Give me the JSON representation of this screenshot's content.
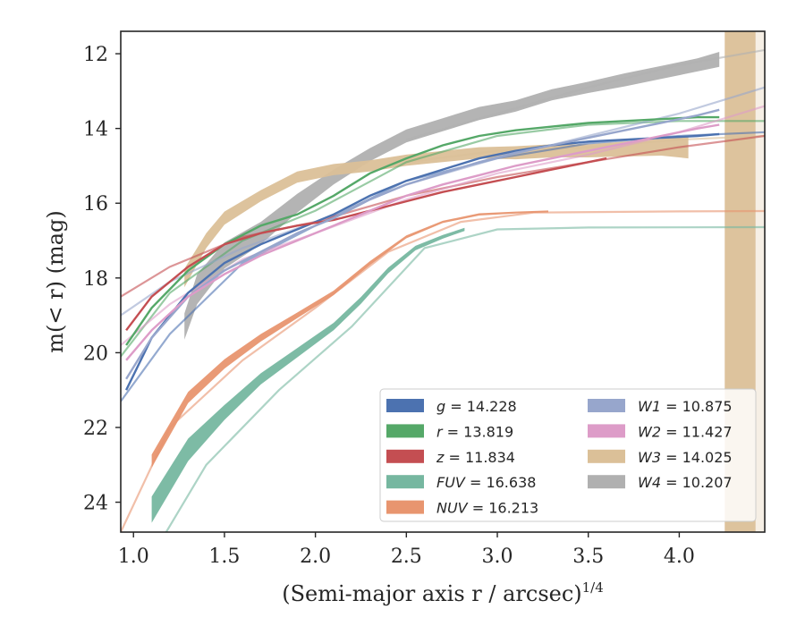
{
  "chart_data": {
    "type": "line",
    "xlabel": "(Semi-major axis r / arcsec)",
    "xlabel_italic": "r",
    "xlabel_exponent": "1/4",
    "ylabel": "m(< r) (mag)",
    "xlim": [
      0.93,
      4.47
    ],
    "ylim": [
      24.8,
      11.4
    ],
    "y_inverted": true,
    "xticks": [
      1.0,
      1.5,
      2.0,
      2.5,
      3.0,
      3.5,
      4.0
    ],
    "xtick_labels": [
      "1.0",
      "1.5",
      "2.0",
      "2.5",
      "3.0",
      "3.5",
      "4.0"
    ],
    "yticks": [
      12,
      14,
      16,
      18,
      20,
      22,
      24
    ],
    "ytick_labels": [
      "12",
      "14",
      "16",
      "18",
      "20",
      "22",
      "24"
    ],
    "grid": false,
    "legend": {
      "placement": "lower-right",
      "columns": 2,
      "entries": [
        {
          "band": "g",
          "value": "14.228",
          "color": "#4c72b0"
        },
        {
          "band": "r",
          "value": "13.819",
          "color": "#55a868"
        },
        {
          "band": "z",
          "value": "11.834",
          "color": "#c44e52"
        },
        {
          "band": "FUV",
          "value": "16.638",
          "color": "#76b7a0"
        },
        {
          "band": "NUV",
          "value": "16.213",
          "color": "#e8956f"
        },
        {
          "band": "W1",
          "value": "10.875",
          "color": "#97a6cc"
        },
        {
          "band": "W2",
          "value": "11.427",
          "color": "#dd9cc8"
        },
        {
          "band": "W3",
          "value": "14.025",
          "color": "#dbc098"
        },
        {
          "band": "W4",
          "value": "10.207",
          "color": "#b0b0b0"
        }
      ]
    },
    "series": [
      {
        "name": "W4",
        "color": "#b0b0b0",
        "data": [
          [
            1.28,
            19.3
          ],
          [
            1.35,
            18.3
          ],
          [
            1.5,
            17.4
          ],
          [
            1.7,
            16.8
          ],
          [
            1.9,
            16.0
          ],
          [
            2.1,
            15.3
          ],
          [
            2.3,
            14.7
          ],
          [
            2.5,
            14.2
          ],
          [
            2.7,
            13.9
          ],
          [
            2.9,
            13.6
          ],
          [
            3.1,
            13.4
          ],
          [
            3.3,
            13.1
          ],
          [
            3.5,
            12.9
          ],
          [
            3.7,
            12.7
          ],
          [
            3.9,
            12.5
          ],
          [
            4.1,
            12.3
          ],
          [
            4.22,
            12.15
          ]
        ],
        "band_width": [
          0.7,
          0.8,
          0.7,
          0.6,
          0.5,
          0.4,
          0.35,
          0.35,
          0.35,
          0.35,
          0.3,
          0.3,
          0.3,
          0.35,
          0.35,
          0.35,
          0.4
        ],
        "model": [
          [
            2.5,
            14.3
          ],
          [
            3.0,
            13.6
          ],
          [
            3.5,
            12.9
          ],
          [
            4.0,
            12.3
          ],
          [
            4.47,
            11.9
          ]
        ]
      },
      {
        "name": "W3",
        "color": "#dbc098",
        "data": [
          [
            1.28,
            18.0
          ],
          [
            1.4,
            17.0
          ],
          [
            1.5,
            16.4
          ],
          [
            1.7,
            15.8
          ],
          [
            1.9,
            15.3
          ],
          [
            2.1,
            15.1
          ],
          [
            2.3,
            15.0
          ],
          [
            2.5,
            14.85
          ],
          [
            2.7,
            14.75
          ],
          [
            2.9,
            14.65
          ],
          [
            3.1,
            14.65
          ],
          [
            3.3,
            14.6
          ],
          [
            3.5,
            14.6
          ],
          [
            3.7,
            14.55
          ],
          [
            3.9,
            14.5
          ],
          [
            4.05,
            14.5
          ]
        ],
        "band_width": [
          0.5,
          0.4,
          0.35,
          0.3,
          0.3,
          0.3,
          0.3,
          0.3,
          0.3,
          0.3,
          0.35,
          0.35,
          0.35,
          0.4,
          0.45,
          0.6
        ],
        "model": [
          [
            2.5,
            14.9
          ],
          [
            3.0,
            14.6
          ],
          [
            3.5,
            14.5
          ],
          [
            4.0,
            14.3
          ],
          [
            4.47,
            14.2
          ]
        ]
      },
      {
        "name": "g",
        "color": "#4c72b0",
        "data": [
          [
            0.96,
            21.0
          ],
          [
            1.1,
            19.6
          ],
          [
            1.3,
            18.4
          ],
          [
            1.5,
            17.6
          ],
          [
            1.7,
            17.1
          ],
          [
            1.9,
            16.7
          ],
          [
            2.1,
            16.3
          ],
          [
            2.3,
            15.8
          ],
          [
            2.5,
            15.4
          ],
          [
            2.7,
            15.1
          ],
          [
            2.9,
            14.8
          ],
          [
            3.1,
            14.6
          ],
          [
            3.3,
            14.45
          ],
          [
            3.5,
            14.35
          ],
          [
            3.7,
            14.3
          ],
          [
            3.9,
            14.25
          ],
          [
            4.1,
            14.2
          ],
          [
            4.22,
            14.15
          ]
        ],
        "model": [
          [
            0.93,
            21.3
          ],
          [
            1.2,
            19.5
          ],
          [
            1.6,
            17.6
          ],
          [
            2.0,
            16.6
          ],
          [
            2.5,
            15.4
          ],
          [
            3.0,
            14.8
          ],
          [
            3.5,
            14.4
          ],
          [
            4.0,
            14.2
          ],
          [
            4.47,
            14.1
          ]
        ]
      },
      {
        "name": "r",
        "color": "#55a868",
        "data": [
          [
            0.96,
            19.8
          ],
          [
            1.1,
            18.8
          ],
          [
            1.3,
            17.8
          ],
          [
            1.5,
            17.1
          ],
          [
            1.7,
            16.6
          ],
          [
            1.9,
            16.3
          ],
          [
            2.1,
            15.8
          ],
          [
            2.3,
            15.2
          ],
          [
            2.5,
            14.8
          ],
          [
            2.7,
            14.45
          ],
          [
            2.9,
            14.2
          ],
          [
            3.1,
            14.05
          ],
          [
            3.3,
            13.95
          ],
          [
            3.5,
            13.85
          ],
          [
            3.7,
            13.8
          ],
          [
            3.9,
            13.75
          ],
          [
            4.1,
            13.7
          ],
          [
            4.22,
            13.7
          ]
        ],
        "model": [
          [
            0.93,
            20.1
          ],
          [
            1.2,
            18.4
          ],
          [
            1.6,
            17.0
          ],
          [
            2.0,
            16.2
          ],
          [
            2.5,
            14.9
          ],
          [
            3.0,
            14.2
          ],
          [
            3.5,
            13.9
          ],
          [
            4.0,
            13.8
          ],
          [
            4.47,
            13.8
          ]
        ]
      },
      {
        "name": "z",
        "color": "#c44e52",
        "data": [
          [
            0.96,
            19.4
          ],
          [
            1.1,
            18.5
          ],
          [
            1.3,
            17.7
          ],
          [
            1.5,
            17.1
          ],
          [
            1.7,
            16.8
          ],
          [
            1.9,
            16.6
          ],
          [
            2.1,
            16.45
          ],
          [
            2.3,
            16.2
          ],
          [
            2.5,
            15.95
          ],
          [
            2.7,
            15.7
          ],
          [
            2.9,
            15.5
          ],
          [
            3.1,
            15.3
          ],
          [
            3.3,
            15.1
          ],
          [
            3.5,
            14.9
          ],
          [
            3.6,
            14.8
          ]
        ],
        "model": [
          [
            0.93,
            18.5
          ],
          [
            1.2,
            17.7
          ],
          [
            1.6,
            16.9
          ],
          [
            2.0,
            16.5
          ],
          [
            2.5,
            15.8
          ],
          [
            3.0,
            15.3
          ],
          [
            3.5,
            14.9
          ],
          [
            4.0,
            14.5
          ],
          [
            4.47,
            14.2
          ]
        ]
      },
      {
        "name": "W1",
        "color": "#97a6cc",
        "data": [
          [
            0.96,
            20.7
          ],
          [
            1.1,
            19.6
          ],
          [
            1.3,
            18.5
          ],
          [
            1.5,
            17.8
          ],
          [
            1.7,
            17.3
          ],
          [
            1.9,
            16.8
          ],
          [
            2.1,
            16.4
          ],
          [
            2.3,
            15.9
          ],
          [
            2.5,
            15.5
          ],
          [
            2.7,
            15.2
          ],
          [
            2.9,
            14.9
          ],
          [
            3.1,
            14.65
          ],
          [
            3.3,
            14.45
          ],
          [
            3.5,
            14.25
          ],
          [
            3.7,
            14.05
          ],
          [
            3.9,
            13.85
          ],
          [
            4.1,
            13.65
          ],
          [
            4.22,
            13.5
          ]
        ],
        "model": [
          [
            0.93,
            19.0
          ],
          [
            1.2,
            18.1
          ],
          [
            1.6,
            17.2
          ],
          [
            2.0,
            16.5
          ],
          [
            2.5,
            15.5
          ],
          [
            3.0,
            14.8
          ],
          [
            3.5,
            14.2
          ],
          [
            4.0,
            13.6
          ],
          [
            4.47,
            12.9
          ]
        ]
      },
      {
        "name": "W2",
        "color": "#dd9cc8",
        "data": [
          [
            0.96,
            20.2
          ],
          [
            1.1,
            19.4
          ],
          [
            1.3,
            18.5
          ],
          [
            1.5,
            17.9
          ],
          [
            1.7,
            17.4
          ],
          [
            1.9,
            17.0
          ],
          [
            2.1,
            16.6
          ],
          [
            2.3,
            16.2
          ],
          [
            2.5,
            15.8
          ],
          [
            2.7,
            15.5
          ],
          [
            2.9,
            15.25
          ],
          [
            3.1,
            15.0
          ],
          [
            3.3,
            14.8
          ],
          [
            3.5,
            14.6
          ],
          [
            3.7,
            14.4
          ],
          [
            3.9,
            14.2
          ],
          [
            4.1,
            14.0
          ],
          [
            4.22,
            13.9
          ]
        ],
        "model": [
          [
            0.93,
            19.8
          ],
          [
            1.2,
            18.7
          ],
          [
            1.6,
            17.5
          ],
          [
            2.0,
            16.8
          ],
          [
            2.5,
            15.9
          ],
          [
            3.0,
            15.2
          ],
          [
            3.5,
            14.7
          ],
          [
            4.0,
            14.1
          ],
          [
            4.47,
            13.4
          ]
        ]
      },
      {
        "name": "NUV",
        "color": "#e8956f",
        "data": [
          [
            1.1,
            22.9
          ],
          [
            1.3,
            21.2
          ],
          [
            1.5,
            20.3
          ],
          [
            1.7,
            19.6
          ],
          [
            1.9,
            19.0
          ],
          [
            2.1,
            18.4
          ],
          [
            2.3,
            17.6
          ],
          [
            2.5,
            16.9
          ],
          [
            2.7,
            16.5
          ],
          [
            2.9,
            16.3
          ],
          [
            3.1,
            16.25
          ],
          [
            3.28,
            16.22
          ]
        ],
        "band_width": [
          0.35,
          0.3,
          0.25,
          0.2,
          0.15,
          0.12,
          0.1,
          0.08,
          0.06,
          0.06,
          0.05,
          0.05
        ],
        "model": [
          [
            0.93,
            24.8
          ],
          [
            1.2,
            22.0
          ],
          [
            1.6,
            20.2
          ],
          [
            2.0,
            18.8
          ],
          [
            2.4,
            17.3
          ],
          [
            2.8,
            16.5
          ],
          [
            3.2,
            16.25
          ],
          [
            4.0,
            16.22
          ],
          [
            4.47,
            16.21
          ]
        ]
      },
      {
        "name": "FUV",
        "color": "#76b7a0",
        "data": [
          [
            1.1,
            24.2
          ],
          [
            1.3,
            22.6
          ],
          [
            1.5,
            21.6
          ],
          [
            1.7,
            20.7
          ],
          [
            1.9,
            20.0
          ],
          [
            2.1,
            19.3
          ],
          [
            2.25,
            18.6
          ],
          [
            2.4,
            17.8
          ],
          [
            2.55,
            17.2
          ],
          [
            2.7,
            16.9
          ],
          [
            2.82,
            16.7
          ]
        ],
        "band_width": [
          0.7,
          0.6,
          0.4,
          0.3,
          0.25,
          0.2,
          0.18,
          0.15,
          0.12,
          0.1,
          0.08
        ],
        "model": [
          [
            1.18,
            24.8
          ],
          [
            1.4,
            23.0
          ],
          [
            1.8,
            21.0
          ],
          [
            2.2,
            19.3
          ],
          [
            2.6,
            17.2
          ],
          [
            3.0,
            16.7
          ],
          [
            3.5,
            16.65
          ],
          [
            4.47,
            16.64
          ]
        ]
      }
    ],
    "w3_divergence": {
      "x_start": 4.25,
      "x_end": 4.42
    }
  }
}
